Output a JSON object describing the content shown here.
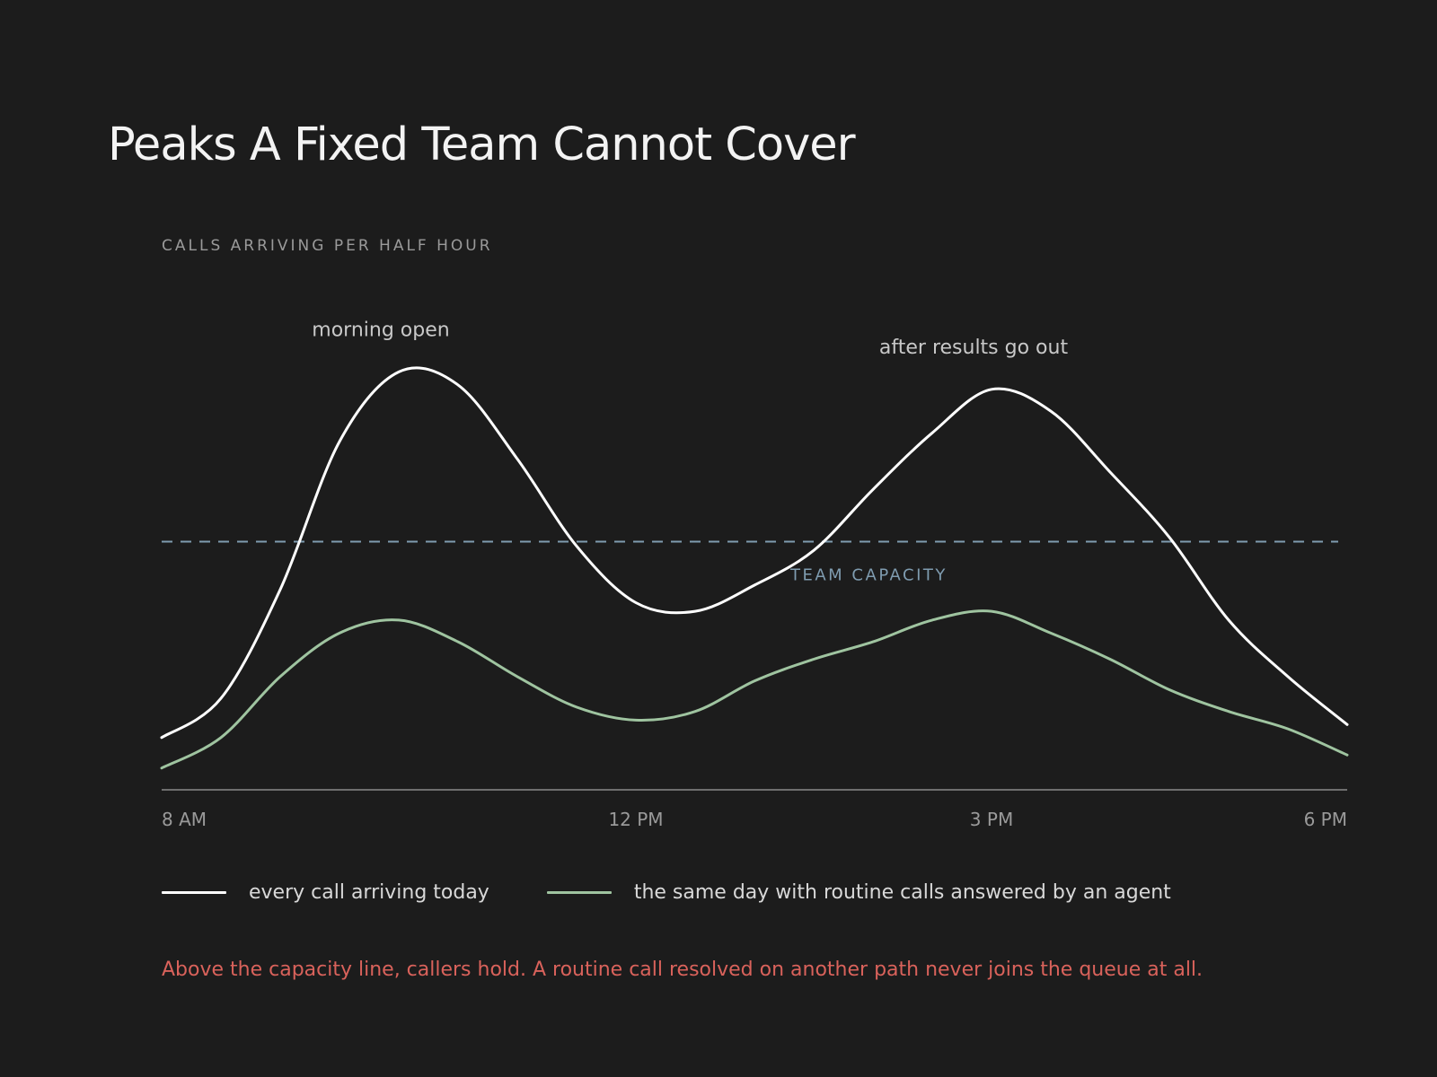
{
  "title": "Peaks A Fixed Team Cannot Cover",
  "footnote": "Above the capacity line, callers hold. A routine call resolved on another path never joins the queue at all.",
  "colors": {
    "background": "#1c1c1c",
    "all_calls": "#ffffff",
    "routine_answered": "#9fc4a0",
    "capacity": "#7f9cb0",
    "axis": "#8a8a8a",
    "muted_text": "#9a9a9a",
    "annotation": "#c8c8c8",
    "footnote": "#d9625b"
  },
  "chart_data": {
    "type": "line",
    "title": "Peaks A Fixed Team Cannot Cover",
    "ylabel": "CALLS ARRIVING PER HALF HOUR",
    "xlabel": "",
    "x_unit": "hour of day (24h)",
    "xlim": [
      8,
      18
    ],
    "ylim": [
      0,
      100
    ],
    "y_tick_labels_shown": false,
    "grid": false,
    "x_ticks": [
      {
        "value": 8,
        "label": "8 AM"
      },
      {
        "value": 12,
        "label": "12 PM"
      },
      {
        "value": 15,
        "label": "3 PM"
      },
      {
        "value": 18,
        "label": "6 PM"
      }
    ],
    "series": [
      {
        "name": "every call arriving today",
        "color": "#ffffff",
        "x": [
          8,
          8.5,
          9,
          9.5,
          10,
          10.5,
          11,
          11.5,
          12,
          12.5,
          13,
          13.5,
          14,
          14.5,
          15,
          15.5,
          16,
          16.5,
          17,
          17.5,
          18
        ],
        "values": [
          12,
          21,
          46,
          80,
          96,
          93,
          76,
          56,
          43,
          41,
          47,
          55,
          69,
          82,
          92,
          87,
          73,
          58,
          39,
          26,
          15
        ]
      },
      {
        "name": "the same day with routine calls answered by an agent",
        "color": "#9fc4a0",
        "x": [
          8,
          8.5,
          9,
          9.5,
          10,
          10.5,
          11,
          11.5,
          12,
          12.5,
          13,
          13.5,
          14,
          14.5,
          15,
          15.5,
          16,
          16.5,
          17,
          17.5,
          18
        ],
        "values": [
          5,
          12,
          26,
          36,
          39,
          34,
          26,
          19,
          16,
          18,
          25,
          30,
          34,
          39,
          41,
          36,
          30,
          23,
          18,
          14,
          8
        ]
      }
    ],
    "reference_lines": [
      {
        "label": "TEAM CAPACITY",
        "value": 57,
        "color": "#7f9cb0",
        "style": "dashed"
      }
    ],
    "annotations": [
      {
        "text": "morning open",
        "x": 10,
        "y": 96
      },
      {
        "text": "after results go out",
        "x": 15,
        "y": 92
      }
    ],
    "legend_position": "bottom-left"
  }
}
